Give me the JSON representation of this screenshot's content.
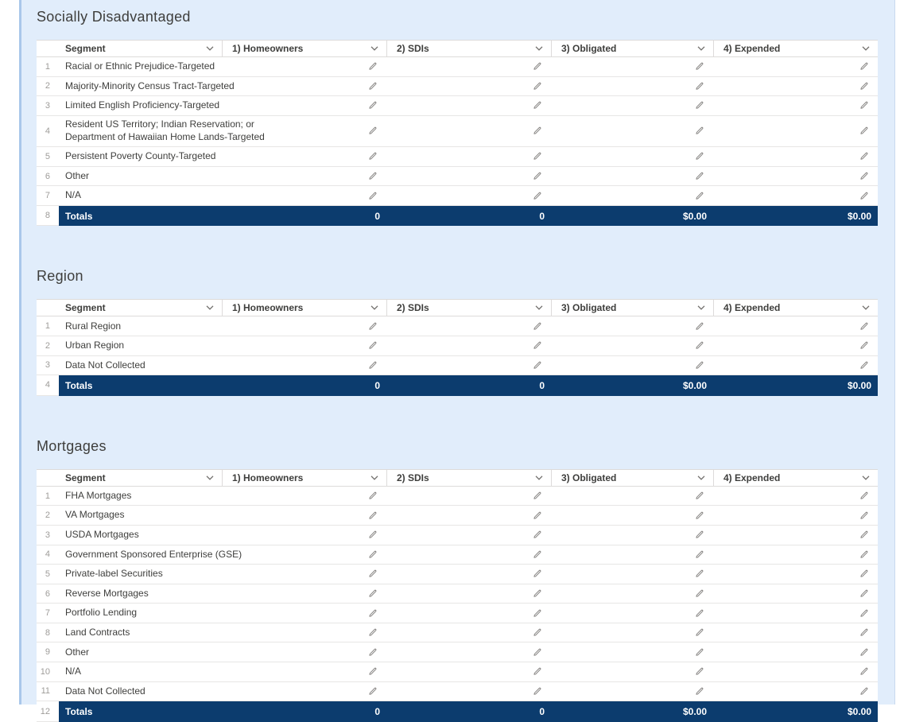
{
  "palette": {
    "panel_bg": "#e1edfb",
    "accent_strip": "#a9c7ea",
    "totals_bg": "#0c3c6e",
    "header_text": "#3e3e3c",
    "icon_gray": "#706e6b"
  },
  "icons": {
    "column_menu": "chevron-down-icon",
    "cell_edit": "pencil-icon"
  },
  "columns": [
    {
      "key": "segment",
      "label": "Segment"
    },
    {
      "key": "homeowners",
      "label": "1) Homeowners"
    },
    {
      "key": "sdis",
      "label": "2) SDIs"
    },
    {
      "key": "obligated",
      "label": "3) Obligated"
    },
    {
      "key": "expended",
      "label": "4) Expended"
    }
  ],
  "sections": [
    {
      "title": "Socially Disadvantaged",
      "rows": [
        {
          "num": "1",
          "label": [
            "Racial or Ethnic Prejudice-Targeted"
          ]
        },
        {
          "num": "2",
          "label": [
            "Majority-Minority Census Tract-Targeted"
          ]
        },
        {
          "num": "3",
          "label": [
            "Limited English Proficiency-Targeted"
          ]
        },
        {
          "num": "4",
          "label": [
            "Resident US Territory; Indian Reservation; or",
            "Department of Hawaiian Home Lands-Targeted"
          ],
          "tall": true
        },
        {
          "num": "5",
          "label": [
            "Persistent Poverty County-Targeted"
          ]
        },
        {
          "num": "6",
          "label": [
            "Other"
          ]
        },
        {
          "num": "7",
          "label": [
            "N/A"
          ]
        }
      ],
      "totals": {
        "num": "8",
        "label": "Totals",
        "values": [
          "0",
          "0",
          "$0.00",
          "$0.00"
        ]
      }
    },
    {
      "title": "Region",
      "rows": [
        {
          "num": "1",
          "label": [
            "Rural Region"
          ]
        },
        {
          "num": "2",
          "label": [
            "Urban Region"
          ]
        },
        {
          "num": "3",
          "label": [
            "Data Not Collected"
          ]
        }
      ],
      "totals": {
        "num": "4",
        "label": "Totals",
        "values": [
          "0",
          "0",
          "$0.00",
          "$0.00"
        ]
      }
    },
    {
      "title": "Mortgages",
      "rows": [
        {
          "num": "1",
          "label": [
            "FHA Mortgages"
          ]
        },
        {
          "num": "2",
          "label": [
            "VA Mortgages"
          ]
        },
        {
          "num": "3",
          "label": [
            "USDA Mortgages"
          ]
        },
        {
          "num": "4",
          "label": [
            "Government Sponsored Enterprise (GSE)"
          ]
        },
        {
          "num": "5",
          "label": [
            "Private-label Securities"
          ]
        },
        {
          "num": "6",
          "label": [
            "Reverse Mortgages"
          ]
        },
        {
          "num": "7",
          "label": [
            "Portfolio Lending"
          ]
        },
        {
          "num": "8",
          "label": [
            "Land Contracts"
          ]
        },
        {
          "num": "9",
          "label": [
            "Other"
          ]
        },
        {
          "num": "10",
          "label": [
            "N/A"
          ]
        },
        {
          "num": "11",
          "label": [
            "Data Not Collected"
          ]
        }
      ],
      "totals": {
        "num": "12",
        "label": "Totals",
        "values": [
          "0",
          "0",
          "$0.00",
          "$0.00"
        ]
      }
    }
  ]
}
